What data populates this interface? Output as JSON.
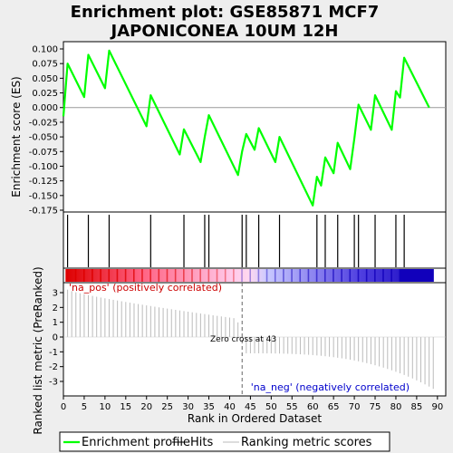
{
  "chart_data": {
    "type": "line",
    "title_line1": "Enrichment plot: GSE85871 MCF7",
    "title_line2": "JAPONICONEA 10UM 12H",
    "xlabel": "Rank in Ordered Dataset",
    "ylabel_top": "Enrichment score (ES)",
    "ylabel_bottom": "Ranked list metric (PreRanked)",
    "xlim": [
      0,
      92
    ],
    "ylim_es": [
      -0.175,
      0.11
    ],
    "ylim_metric": [
      -4,
      4
    ],
    "x_ticks": [
      0,
      5,
      10,
      15,
      20,
      25,
      30,
      35,
      40,
      45,
      50,
      55,
      60,
      65,
      70,
      75,
      80,
      85,
      90
    ],
    "x_tick_labels": [
      "0",
      "5",
      "10",
      "15",
      "20",
      "25",
      "30",
      "35",
      "40",
      "45",
      "50",
      "55",
      "60",
      "65",
      "70",
      "75",
      "80",
      "85",
      "90"
    ],
    "es_ticks": [
      0.1,
      0.075,
      0.05,
      0.025,
      0.0,
      -0.025,
      -0.05,
      -0.075,
      -0.1,
      -0.125,
      -0.15,
      -0.175
    ],
    "es_tick_labels": [
      "0.100",
      "0.075",
      "0.050",
      "0.025",
      "0.000",
      "-0.025",
      "-0.050",
      "-0.075",
      "-0.100",
      "-0.125",
      "-0.150",
      "-0.175"
    ],
    "metric_ticks": [
      3,
      2,
      1,
      0,
      -1,
      -2,
      -3
    ],
    "metric_tick_labels": [
      "3",
      "2",
      "1",
      "0",
      "-1",
      "-2",
      "-3"
    ],
    "es_curve": {
      "x": [
        0,
        1,
        5,
        6,
        10,
        11,
        20,
        21,
        28,
        29,
        33,
        34,
        35,
        42,
        43,
        44,
        46,
        47,
        51,
        52,
        60,
        61,
        62,
        63,
        65,
        66,
        69,
        70,
        71,
        74,
        75,
        79,
        80,
        81,
        82,
        88
      ],
      "y": [
        -0.015,
        0.075,
        0.018,
        0.09,
        0.033,
        0.097,
        -0.032,
        0.021,
        -0.08,
        -0.037,
        -0.093,
        -0.05,
        -0.013,
        -0.115,
        -0.075,
        -0.045,
        -0.072,
        -0.035,
        -0.093,
        -0.05,
        -0.167,
        -0.118,
        -0.133,
        -0.085,
        -0.112,
        -0.06,
        -0.105,
        -0.053,
        0.005,
        -0.038,
        0.021,
        -0.038,
        0.028,
        0.017,
        0.085,
        0.0
      ]
    },
    "hits": [
      1,
      6,
      11,
      21,
      29,
      34,
      35,
      43,
      44,
      47,
      52,
      61,
      63,
      66,
      70,
      71,
      75,
      80,
      82
    ],
    "metric": {
      "n": 89,
      "start": 3.2,
      "end": -3.5,
      "zero_cross": 43
    },
    "zero_cross_label": "Zero cross at 43",
    "pos_label": "'na_pos' (positively correlated)",
    "neg_label": "'na_neg' (negatively correlated)",
    "legend": [
      {
        "label": "Enrichment profile",
        "color": "#00ff00"
      },
      {
        "label": "Hits",
        "color": "#000000"
      },
      {
        "label": "Ranking metric scores",
        "color": "#bbbbbb"
      }
    ],
    "colors": {
      "es": "#00ff00",
      "pos_label": "#cc0000",
      "neg_label": "#0000cc",
      "bar_red": "#dd0000",
      "bar_blue": "#1100bb"
    }
  }
}
